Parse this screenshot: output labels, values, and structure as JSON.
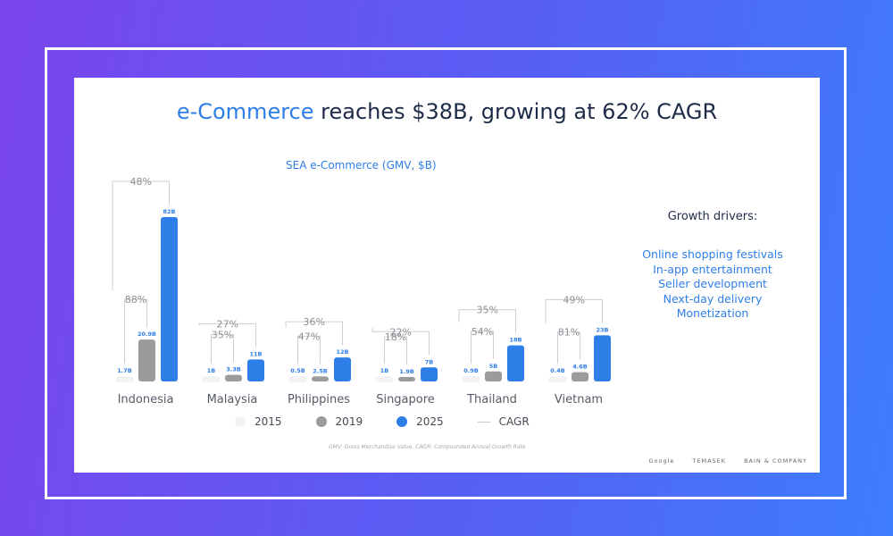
{
  "header": {
    "title_accent": "e-Commerce",
    "title_rest": " reaches $38B, growing at 62% CAGR"
  },
  "colors": {
    "accent": "#2e7ee8",
    "series_2015": "#f3f3f3",
    "series_2019": "#9b9b9b",
    "series_2025": "#2e7ee8",
    "bracket": "#cfcfcf"
  },
  "chart_data": {
    "type": "bar",
    "title": "SEA e-Commerce (GMV, $B)",
    "categories": [
      "Indonesia",
      "Malaysia",
      "Philippines",
      "Singapore",
      "Thailand",
      "Vietnam"
    ],
    "series": [
      {
        "name": "2015",
        "values": [
          1.7,
          1,
          0.5,
          1,
          0.9,
          0.4
        ]
      },
      {
        "name": "2019",
        "values": [
          20.9,
          3.3,
          2.5,
          1.9,
          5,
          4.6
        ]
      },
      {
        "name": "2025",
        "values": [
          82,
          11,
          12,
          7,
          18,
          23
        ]
      }
    ],
    "value_labels": [
      [
        "1.7B",
        "20.9B",
        "82B"
      ],
      [
        "1B",
        "3.3B",
        "11B"
      ],
      [
        "0.5B",
        "2.5B",
        "12B"
      ],
      [
        "1B",
        "1.9B",
        "7B"
      ],
      [
        "0.9B",
        "5B",
        "18B"
      ],
      [
        "0.4B",
        "4.6B",
        "23B"
      ]
    ],
    "cagr_2015_2019": [
      "88%",
      "35%",
      "47%",
      "18%",
      "54%",
      "81%"
    ],
    "cagr_2019_2025": [
      "48%",
      "27%",
      "36%",
      "22%",
      "35%",
      "49%"
    ],
    "legend": [
      "2015",
      "2019",
      "2025",
      "CAGR"
    ],
    "legend_position": "bottom"
  },
  "drivers": {
    "title": "Growth drivers:",
    "items": [
      "Online shopping festivals",
      "In-app entertainment",
      "Seller development",
      "Next-day delivery",
      "Monetization"
    ]
  },
  "footnote": "GMV: Gross Merchandise Value, CAGR: Compounded Annual Growth Rate",
  "logos": [
    "Google",
    "TEMASEK",
    "BAIN & COMPANY"
  ]
}
